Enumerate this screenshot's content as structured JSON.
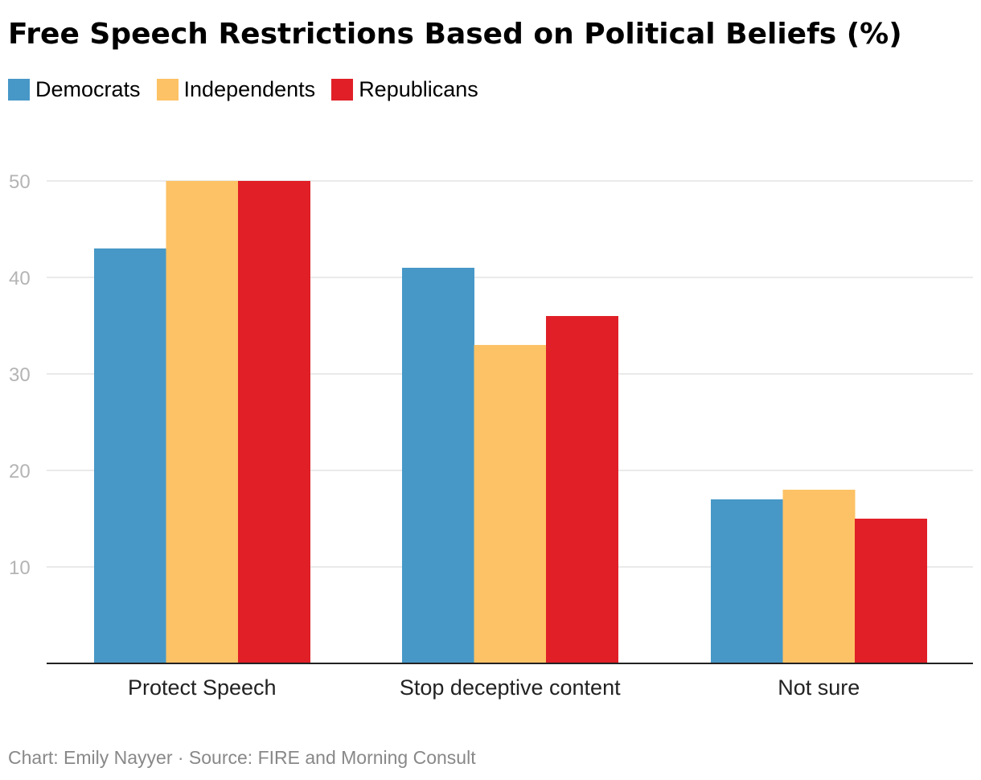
{
  "title": "Free Speech Restrictions Based on Political Beliefs (%)",
  "footer": "Chart: Emily Nayyer · Source: FIRE and Morning Consult",
  "colors": {
    "Democrats": "#4798c7",
    "Independents": "#fdc265",
    "Republicans": "#e01f27"
  },
  "chart_data": {
    "type": "bar",
    "title": "Free Speech Restrictions Based on Political Beliefs (%)",
    "categories": [
      "Protect Speech",
      "Stop deceptive content",
      "Not sure"
    ],
    "series": [
      {
        "name": "Democrats",
        "values": [
          43,
          41,
          17
        ]
      },
      {
        "name": "Independents",
        "values": [
          50,
          33,
          18
        ]
      },
      {
        "name": "Republicans",
        "values": [
          50,
          36,
          15
        ]
      }
    ],
    "yticks": [
      10,
      20,
      30,
      40,
      50
    ],
    "ylim": [
      0,
      50
    ],
    "grid": true,
    "legend": "top-left",
    "xlabel": "",
    "ylabel": ""
  }
}
